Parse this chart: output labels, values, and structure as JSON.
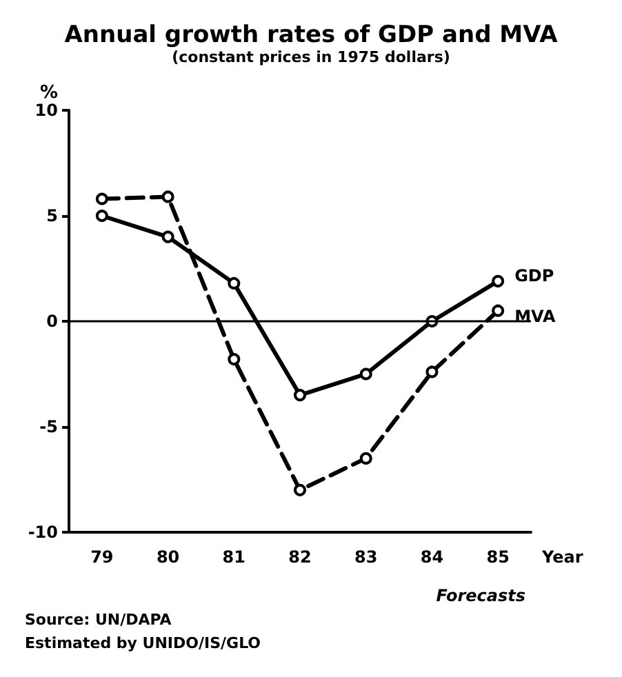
{
  "chart_data": {
    "type": "line",
    "title": "Annual growth rates of GDP and MVA",
    "subtitle": "(constant prices in 1975 dollars)",
    "ylabel": "%",
    "xlabel": "Year",
    "categories": [
      "79",
      "80",
      "81",
      "82",
      "83",
      "84",
      "85"
    ],
    "series": [
      {
        "name": "GDP",
        "color": "#000000",
        "values": [
          5,
          4,
          1.8,
          -3.5,
          -2.5,
          0,
          1.9
        ],
        "line_style": "solid"
      },
      {
        "name": "MVA",
        "color": "#000000",
        "values": [
          5.8,
          5.9,
          -1.8,
          -8,
          -6.5,
          -2.4,
          0.5
        ],
        "line_style": "dashed"
      }
    ],
    "ylim": [
      -10,
      10
    ],
    "yticks": [
      -10,
      -5,
      0,
      5,
      10
    ],
    "grid": false,
    "legend": false,
    "marker": "circle",
    "ref_lines": [
      {
        "axis": "y",
        "value": 0,
        "label": null,
        "color": "#000000"
      }
    ],
    "annotations": [
      "Forecasts",
      "Source: UN/DAPA",
      "Estimated by UNIDO/IS/GLO"
    ]
  }
}
